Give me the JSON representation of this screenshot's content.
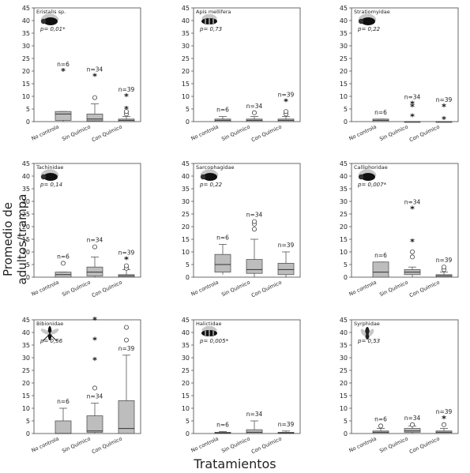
{
  "ylabel": "Promedio de adultos/trampa",
  "xlabel": "Tratamientos",
  "chart_data": [
    {
      "type": "boxplot",
      "title": "Eristalis sp.",
      "pvalue": "p= 0,01*",
      "icon": "hoverfly-icon",
      "categories": [
        "No controla",
        "Sin Químico",
        "Con Químico"
      ],
      "yticks": [
        0,
        5,
        10,
        15,
        20,
        25,
        30,
        35,
        40,
        45
      ],
      "ylim": [
        0,
        45
      ],
      "boxes": [
        {
          "n": "n=6",
          "min": 0,
          "q1": 0.5,
          "median": 3,
          "q3": 4,
          "max": 4,
          "outliers": [
            {
              "v": 20,
              "m": "star"
            }
          ]
        },
        {
          "n": "n=34",
          "min": 0,
          "q1": 0.3,
          "median": 1,
          "q3": 3,
          "max": 7,
          "outliers": [
            {
              "v": 9.5,
              "m": "circle"
            },
            {
              "v": 18,
              "m": "star"
            }
          ]
        },
        {
          "n": "n=39",
          "min": 0,
          "q1": 0,
          "median": 0.5,
          "q3": 1,
          "max": 2,
          "outliers": [
            {
              "v": 3,
              "m": "circle"
            },
            {
              "v": 4,
              "m": "circle"
            },
            {
              "v": 5,
              "m": "star"
            },
            {
              "v": 10,
              "m": "star"
            }
          ]
        }
      ]
    },
    {
      "type": "boxplot",
      "title": "Apis mellifera",
      "pvalue": "p= 0,73",
      "icon": "bee-icon",
      "categories": [
        "No controla",
        "Sin Químico",
        "Con Químico"
      ],
      "yticks": [
        0,
        5,
        10,
        15,
        20,
        25,
        30,
        35,
        40,
        45
      ],
      "ylim": [
        0,
        45
      ],
      "boxes": [
        {
          "n": "n=6",
          "min": 0,
          "q1": 0,
          "median": 0.5,
          "q3": 1,
          "max": 2,
          "outliers": []
        },
        {
          "n": "n=34",
          "min": 0,
          "q1": 0,
          "median": 0.5,
          "q3": 1,
          "max": 2,
          "outliers": [
            {
              "v": 3.5,
              "m": "circle"
            }
          ]
        },
        {
          "n": "n=39",
          "min": 0,
          "q1": 0,
          "median": 0.5,
          "q3": 1,
          "max": 2,
          "outliers": [
            {
              "v": 3,
              "m": "circle"
            },
            {
              "v": 4,
              "m": "circle"
            },
            {
              "v": 8,
              "m": "star"
            }
          ]
        }
      ]
    },
    {
      "type": "boxplot",
      "title": "Stratiomyidae",
      "pvalue": "p= 0,22",
      "icon": "soldier-fly-icon",
      "categories": [
        "No controla",
        "Sin Químico",
        "Con Químico"
      ],
      "yticks": [
        0,
        5,
        10,
        15,
        20,
        25,
        30,
        35,
        40,
        45
      ],
      "ylim": [
        0,
        45
      ],
      "boxes": [
        {
          "n": "n=6",
          "min": 0,
          "q1": 0,
          "median": 0.5,
          "q3": 1,
          "max": 1,
          "outliers": []
        },
        {
          "n": "n=34",
          "min": 0,
          "q1": 0,
          "median": 0,
          "q3": 0,
          "max": 0,
          "outliers": [
            {
              "v": 2,
              "m": "star"
            },
            {
              "v": 6,
              "m": "star"
            },
            {
              "v": 7,
              "m": "star"
            }
          ]
        },
        {
          "n": "n=39",
          "min": 0,
          "q1": 0,
          "median": 0,
          "q3": 0,
          "max": 0,
          "outliers": [
            {
              "v": 1,
              "m": "star"
            },
            {
              "v": 6,
              "m": "star"
            }
          ]
        }
      ]
    },
    {
      "type": "boxplot",
      "title": "Tachinidae",
      "pvalue": "p= 0,14",
      "icon": "tachinid-fly-icon",
      "categories": [
        "No controla",
        "Sin Químico",
        "Con Químico"
      ],
      "yticks": [
        0,
        5,
        10,
        15,
        20,
        25,
        30,
        35,
        40,
        45
      ],
      "ylim": [
        0,
        45
      ],
      "boxes": [
        {
          "n": "n=6",
          "min": 0,
          "q1": 0,
          "median": 1,
          "q3": 2,
          "max": 2,
          "outliers": [
            {
              "v": 5.5,
              "m": "circle"
            }
          ]
        },
        {
          "n": "n=34",
          "min": 0,
          "q1": 0.5,
          "median": 2,
          "q3": 4,
          "max": 8,
          "outliers": [
            {
              "v": 12,
              "m": "circle"
            }
          ]
        },
        {
          "n": "n=39",
          "min": 0,
          "q1": 0,
          "median": 0.5,
          "q3": 1,
          "max": 3,
          "outliers": [
            {
              "v": 3.5,
              "m": "circle"
            },
            {
              "v": 4.5,
              "m": "circle"
            },
            {
              "v": 7,
              "m": "star"
            }
          ]
        }
      ]
    },
    {
      "type": "boxplot",
      "title": "Sarcophagidae",
      "pvalue": "p= 0,22",
      "icon": "flesh-fly-icon",
      "categories": [
        "No controla",
        "Sin Químico",
        "Con Químico"
      ],
      "yticks": [
        0,
        5,
        10,
        15,
        20,
        25,
        30,
        35,
        40,
        45
      ],
      "ylim": [
        0,
        45
      ],
      "boxes": [
        {
          "n": "n=6",
          "min": 1,
          "q1": 2,
          "median": 5,
          "q3": 9,
          "max": 13,
          "outliers": []
        },
        {
          "n": "n=34",
          "min": 0,
          "q1": 1.5,
          "median": 3,
          "q3": 7,
          "max": 15,
          "outliers": [
            {
              "v": 19,
              "m": "circle"
            },
            {
              "v": 21,
              "m": "circle"
            },
            {
              "v": 22,
              "m": "circle"
            }
          ]
        },
        {
          "n": "n=39",
          "min": 0,
          "q1": 1,
          "median": 3,
          "q3": 5.5,
          "max": 10,
          "outliers": []
        }
      ]
    },
    {
      "type": "boxplot",
      "title": "Calliphoridae",
      "pvalue": "p= 0,007*",
      "icon": "blowfly-icon",
      "categories": [
        "No controla",
        "Sin Químico",
        "Con Químico"
      ],
      "yticks": [
        0,
        5,
        10,
        15,
        20,
        25,
        30,
        35,
        40,
        45
      ],
      "ylim": [
        0,
        45
      ],
      "boxes": [
        {
          "n": "n=6",
          "min": 0,
          "q1": 0,
          "median": 2,
          "q3": 6,
          "max": 6,
          "outliers": []
        },
        {
          "n": "n=34",
          "min": 0,
          "q1": 1,
          "median": 2,
          "q3": 3,
          "max": 4,
          "outliers": [
            {
              "v": 8,
              "m": "circle"
            },
            {
              "v": 10,
              "m": "circle"
            },
            {
              "v": 14,
              "m": "star"
            },
            {
              "v": 27,
              "m": "star"
            }
          ]
        },
        {
          "n": "n=39",
          "min": 0,
          "q1": 0,
          "median": 0.5,
          "q3": 1,
          "max": 2,
          "outliers": [
            {
              "v": 3,
              "m": "circle"
            },
            {
              "v": 4,
              "m": "circle"
            }
          ]
        }
      ]
    },
    {
      "type": "boxplot",
      "title": "Bibionidae",
      "pvalue": "p= 0,56",
      "icon": "march-fly-icon",
      "categories": [
        "No controla",
        "Sin Químico",
        "Con Químico"
      ],
      "yticks": [
        0,
        5,
        10,
        15,
        20,
        25,
        30,
        35,
        40,
        45
      ],
      "ylim": [
        0,
        45
      ],
      "boxes": [
        {
          "n": "n=6",
          "min": 0,
          "q1": 0,
          "median": 0,
          "q3": 5,
          "max": 10,
          "outliers": []
        },
        {
          "n": "n=34",
          "min": 0,
          "q1": 0.5,
          "median": 1,
          "q3": 7,
          "max": 12,
          "outliers": [
            {
              "v": 18,
              "m": "circle"
            },
            {
              "v": 29,
              "m": "star"
            },
            {
              "v": 37,
              "m": "star"
            },
            {
              "v": 45,
              "m": "star"
            }
          ]
        },
        {
          "n": "n=39",
          "min": 0,
          "q1": 0,
          "median": 2,
          "q3": 13,
          "max": 31,
          "outliers": [
            {
              "v": 37,
              "m": "circle"
            },
            {
              "v": 42,
              "m": "circle"
            }
          ]
        }
      ]
    },
    {
      "type": "boxplot",
      "title": "Halictidae",
      "pvalue": "p= 0,005*",
      "icon": "sweat-bee-icon",
      "categories": [
        "No controla",
        "Sin Químico",
        "Con Químico"
      ],
      "yticks": [
        0,
        5,
        10,
        15,
        20,
        25,
        30,
        35,
        40,
        45
      ],
      "ylim": [
        0,
        45
      ],
      "boxes": [
        {
          "n": "n=6",
          "min": 0,
          "q1": 0,
          "median": 0.2,
          "q3": 0.5,
          "max": 0.8,
          "outliers": []
        },
        {
          "n": "n=34",
          "min": 0,
          "q1": 0,
          "median": 0.5,
          "q3": 1.5,
          "max": 5,
          "outliers": []
        },
        {
          "n": "n=39",
          "min": 0,
          "q1": 0,
          "median": 0.2,
          "q3": 0.5,
          "max": 1,
          "outliers": []
        }
      ]
    },
    {
      "type": "boxplot",
      "title": "Syrphidae",
      "pvalue": "p= 0,53",
      "icon": "syrphid-fly-icon",
      "categories": [
        "No controla",
        "Sin Químico",
        "Con Químico"
      ],
      "yticks": [
        0,
        5,
        10,
        15,
        20,
        25,
        30,
        35,
        40,
        45
      ],
      "ylim": [
        0,
        45
      ],
      "boxes": [
        {
          "n": "n=6",
          "min": 0,
          "q1": 0,
          "median": 0.5,
          "q3": 1,
          "max": 2,
          "outliers": [
            {
              "v": 3,
              "m": "circle"
            }
          ]
        },
        {
          "n": "n=34",
          "min": 0,
          "q1": 0.5,
          "median": 1,
          "q3": 2,
          "max": 3,
          "outliers": [
            {
              "v": 3.5,
              "m": "circle"
            }
          ]
        },
        {
          "n": "n=39",
          "min": 0,
          "q1": 0,
          "median": 0.5,
          "q3": 1,
          "max": 2,
          "outliers": [
            {
              "v": 3.5,
              "m": "circle"
            },
            {
              "v": 6,
              "m": "star"
            }
          ]
        }
      ]
    }
  ]
}
